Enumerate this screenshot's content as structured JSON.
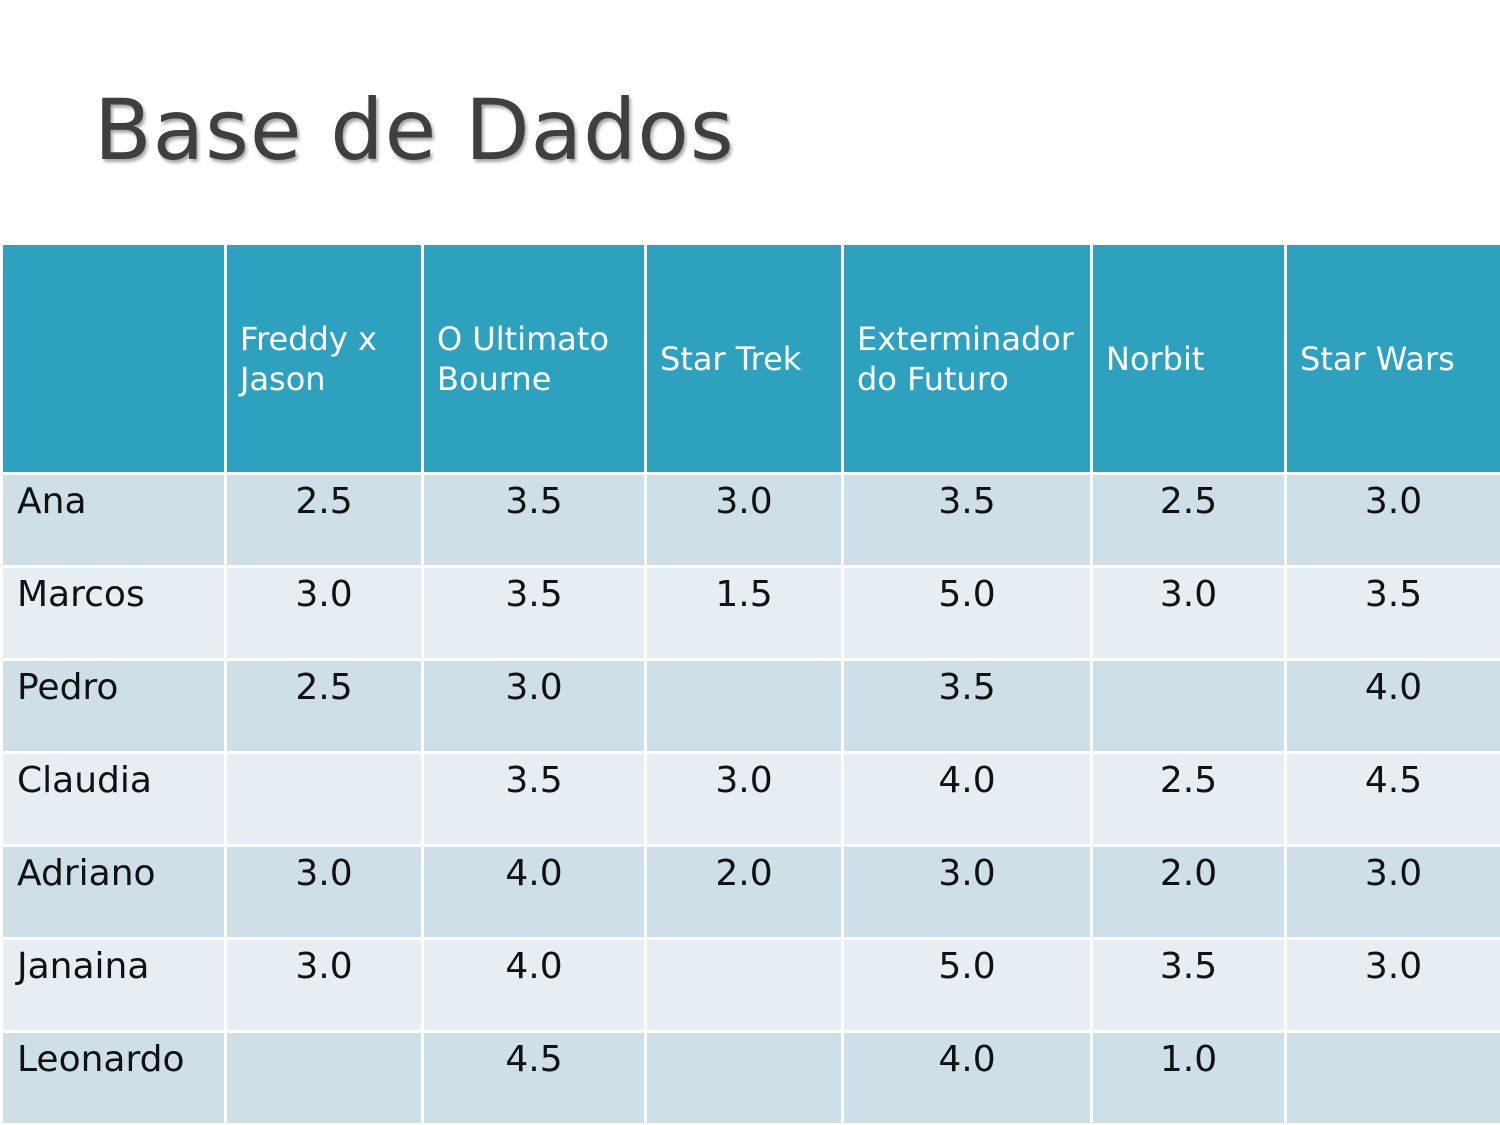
{
  "slide": {
    "title": "Base de Dados"
  },
  "colors": {
    "header_bg": "#2ea1bf",
    "row_odd_bg": "#cedfe8",
    "row_even_bg": "#e6edf3",
    "title_text": "#3f3f3f"
  },
  "table": {
    "corner": "",
    "columns": [
      "Freddy x Jason",
      "O Ultimato Bourne",
      "Star Trek",
      "Exterminador do Futuro",
      "Norbit",
      "Star Wars"
    ],
    "rows": [
      {
        "name": "Ana",
        "values": [
          "2.5",
          "3.5",
          "3.0",
          "3.5",
          "2.5",
          "3.0"
        ]
      },
      {
        "name": "Marcos",
        "values": [
          "3.0",
          "3.5",
          "1.5",
          "5.0",
          "3.0",
          "3.5"
        ]
      },
      {
        "name": "Pedro",
        "values": [
          "2.5",
          "3.0",
          "",
          "3.5",
          "",
          "4.0"
        ]
      },
      {
        "name": "Claudia",
        "values": [
          "",
          "3.5",
          "3.0",
          "4.0",
          "2.5",
          "4.5"
        ]
      },
      {
        "name": "Adriano",
        "values": [
          "3.0",
          "4.0",
          "2.0",
          "3.0",
          "2.0",
          "3.0"
        ]
      },
      {
        "name": "Janaina",
        "values": [
          "3.0",
          "4.0",
          "",
          "5.0",
          "3.5",
          "3.0"
        ]
      },
      {
        "name": "Leonardo",
        "values": [
          "",
          "4.5",
          "",
          "4.0",
          "1.0",
          ""
        ]
      }
    ]
  }
}
